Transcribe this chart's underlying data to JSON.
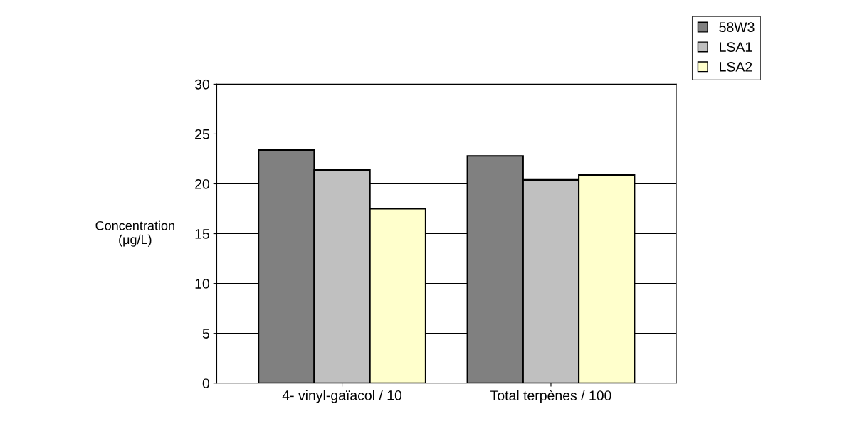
{
  "chart_data": {
    "type": "bar",
    "ylabel": "Concentration\n(μg/L)",
    "categories": [
      "4- vinyl-gaïacol / 10",
      "Total terpènes / 100"
    ],
    "series": [
      {
        "name": "58W3",
        "color": "#808080",
        "values": [
          23.4,
          22.8
        ]
      },
      {
        "name": "LSA1",
        "color": "#c0c0c0",
        "values": [
          21.4,
          20.4
        ]
      },
      {
        "name": "LSA2",
        "color": "#ffffcc",
        "values": [
          17.5,
          20.9
        ]
      }
    ],
    "ylim": [
      0,
      30
    ],
    "yticks": [
      0,
      5,
      10,
      15,
      20,
      25,
      30
    ],
    "grid": "y",
    "legend": "top right"
  }
}
